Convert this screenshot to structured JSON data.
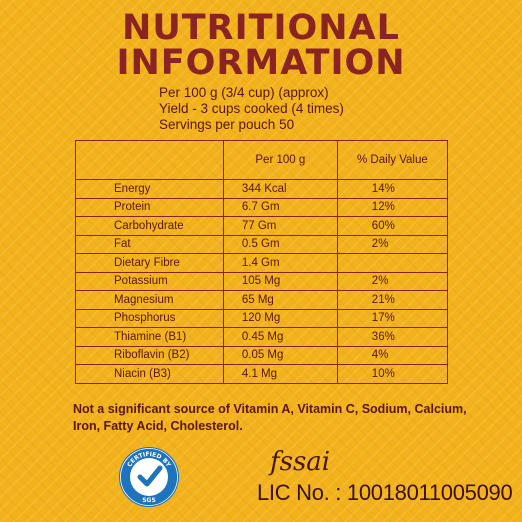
{
  "title": {
    "line1": "NUTRITIONAL",
    "line2": "INFORMATION"
  },
  "intro": [
    "Per 100 g (3/4 cup) (approx)",
    "Yield - 3 cups cooked (4 times)",
    "Servings per pouch 50"
  ],
  "table": {
    "headers": [
      "",
      "Per 100 g",
      "% Daily Value"
    ],
    "rows": [
      [
        "Energy",
        "344 Kcal",
        "14%"
      ],
      [
        "Protein",
        "6.7 Gm",
        "12%"
      ],
      [
        "Carbohydrate",
        "77 Gm",
        "60%"
      ],
      [
        "Fat",
        "0.5 Gm",
        "2%"
      ],
      [
        "Dietary Fibre",
        "1.4 Gm",
        ""
      ],
      [
        "Potassium",
        "105 Mg",
        "2%"
      ],
      [
        "Magnesium",
        "65 Mg",
        "21%"
      ],
      [
        "Phosphorus",
        "120 Mg",
        "17%"
      ],
      [
        "Thiamine (B1)",
        "0.45 Mg",
        "36%"
      ],
      [
        "Riboflavin (B2)",
        "0.05 Mg",
        "4%"
      ],
      [
        "Niacin (B3)",
        "4.1 Mg",
        "10%"
      ]
    ]
  },
  "note": "Not a significant source of Vitamin A, Vitamin C, Sodium, Calcium, Iron, Fatty Acid, Cholesterol.",
  "certification": {
    "top_text": "CERTIFIED BY",
    "bottom_text": "SGS"
  },
  "fssai": {
    "logo_text": "fssai",
    "license": "LIC No. : 10018011005090"
  },
  "colors": {
    "background": "#f2b21e",
    "title": "#8a2422",
    "text": "#5a1515",
    "cert_blue": "#1e73be"
  }
}
